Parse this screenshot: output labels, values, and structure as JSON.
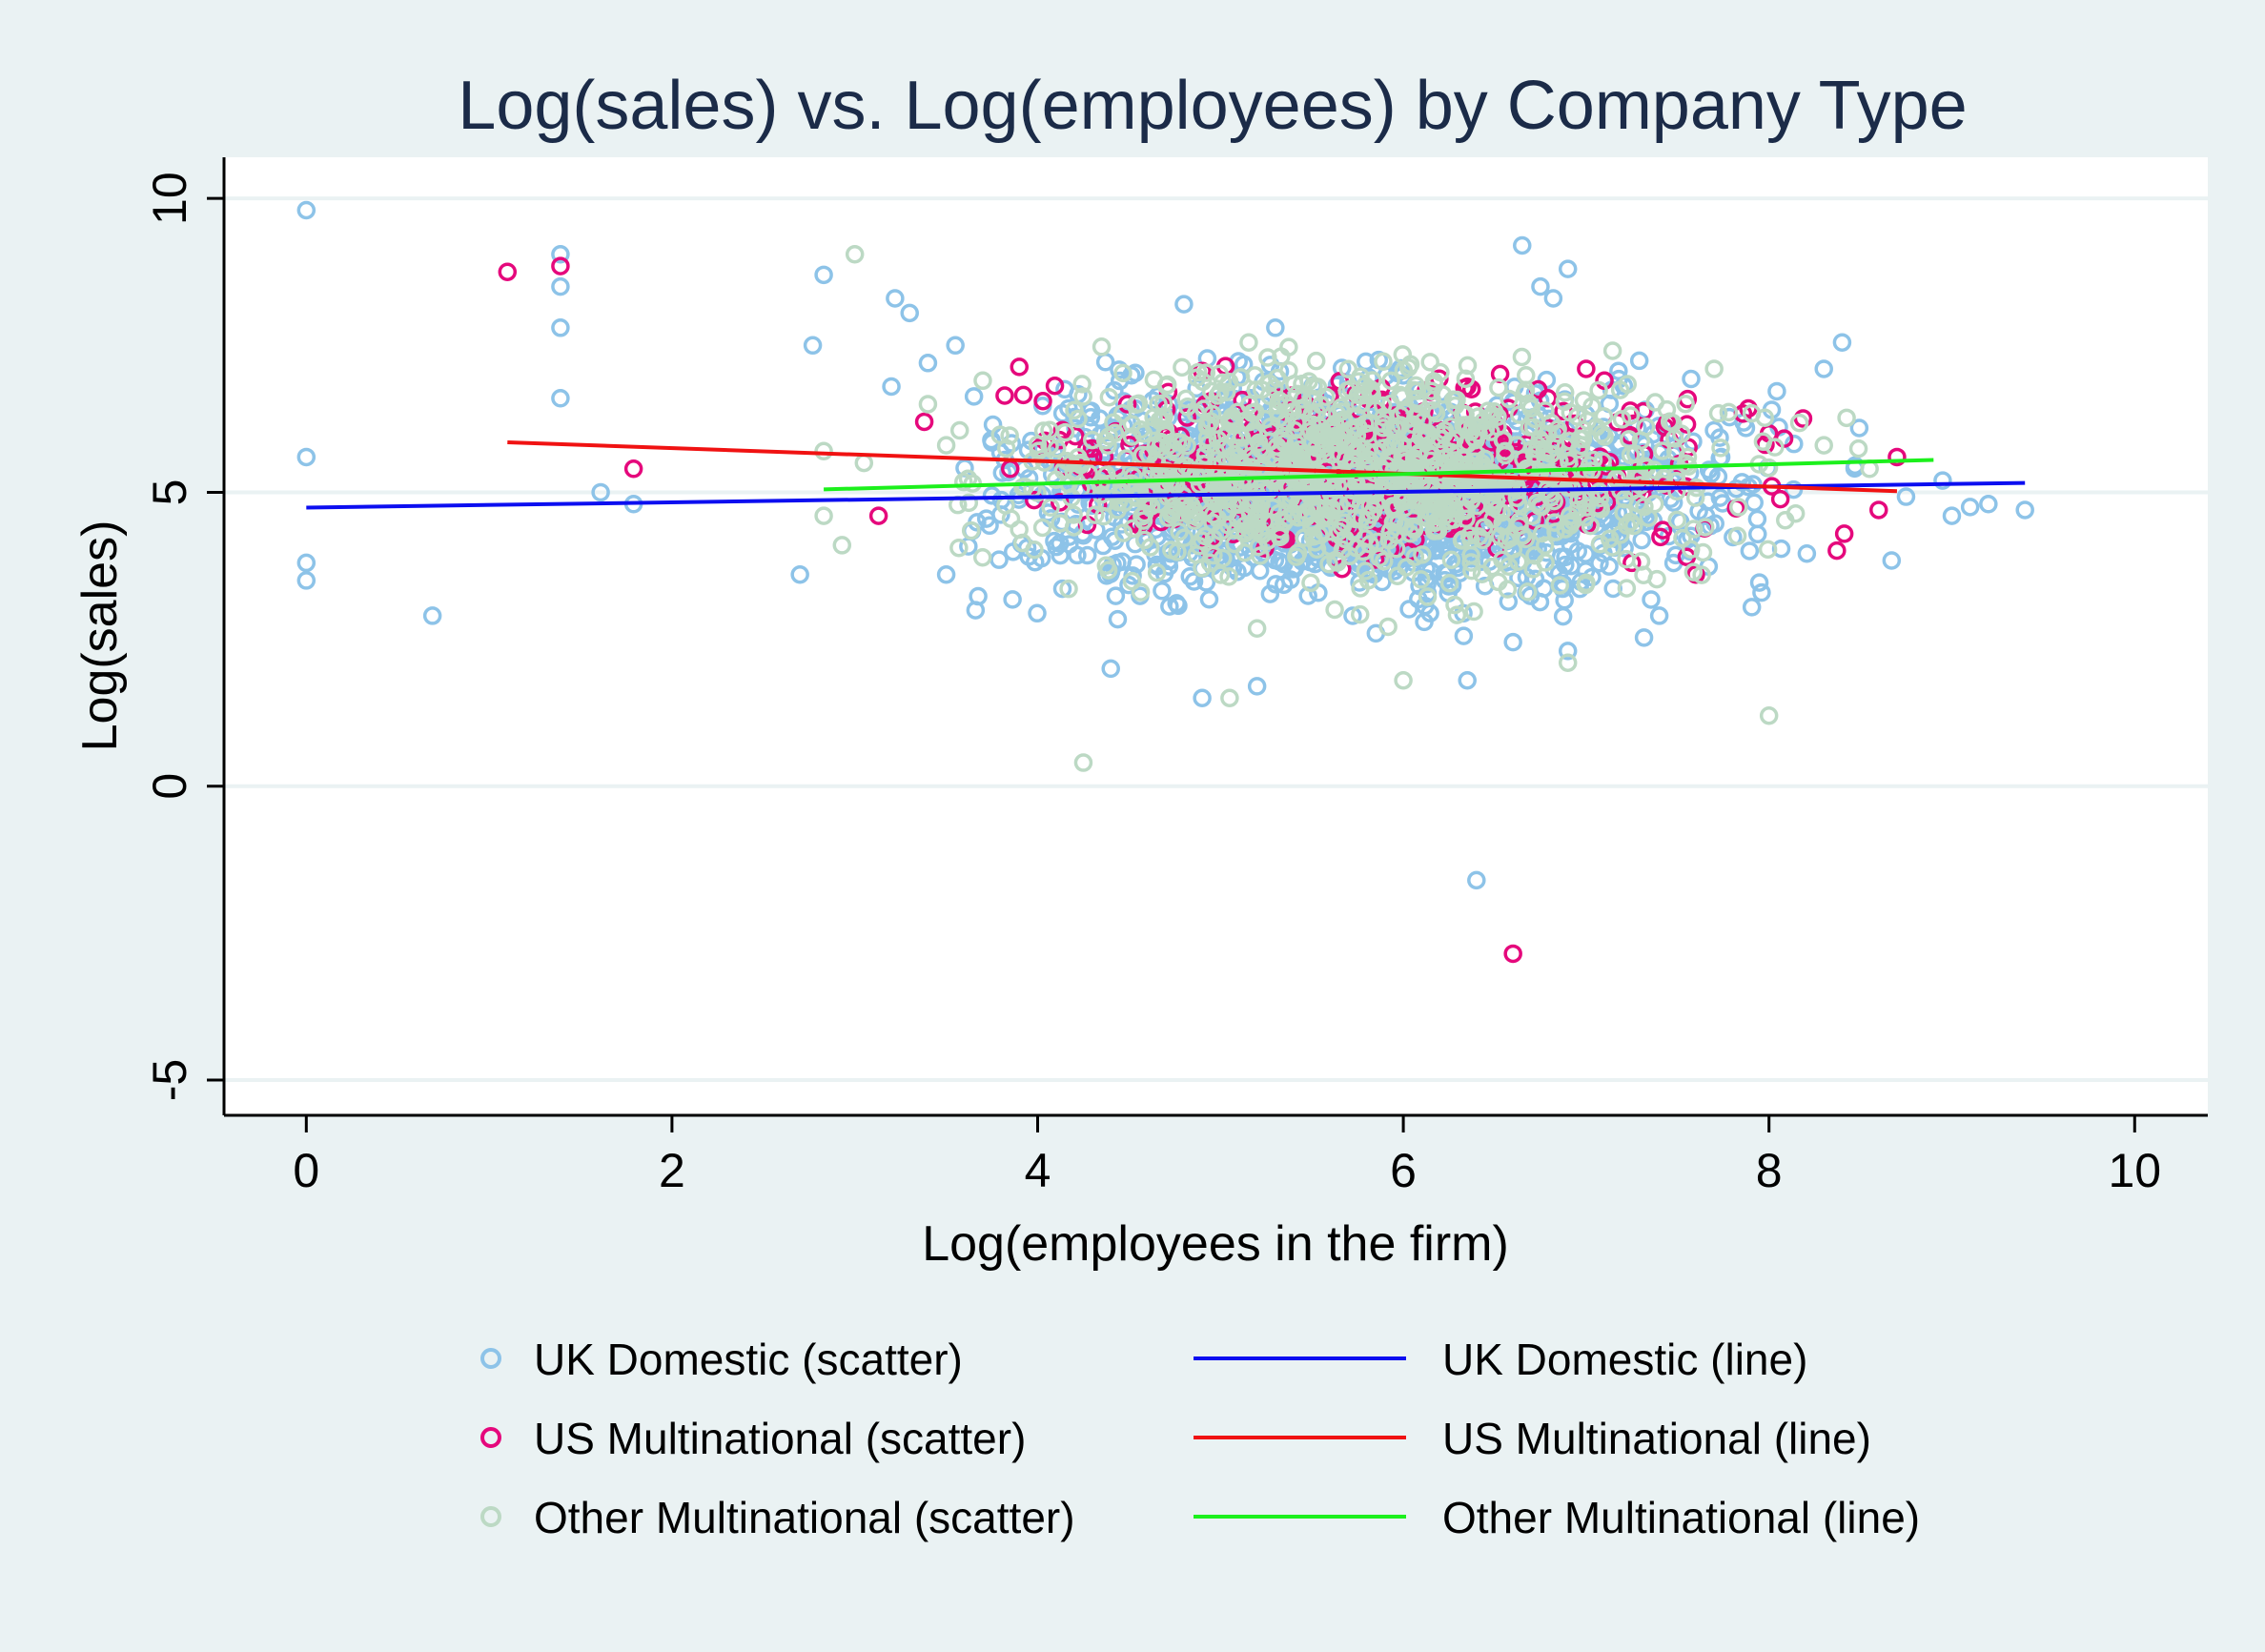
{
  "chart_data": {
    "type": "scatter",
    "title": "Log(sales) vs. Log(employees) by Company Type",
    "xlabel": "Log(employees in the firm)",
    "ylabel": "Log(sales)",
    "xlim": [
      -0.45,
      10.4
    ],
    "ylim": [
      -5.6,
      10.7
    ],
    "x_ticks": [
      0,
      2,
      4,
      6,
      8,
      10
    ],
    "y_ticks": [
      -5,
      0,
      5,
      10
    ],
    "grid": "horizontal",
    "legend_position": "bottom",
    "scatter_series": [
      {
        "name": "UK Domestic (scatter)",
        "color": "#8dc3e8",
        "marker": "hollow-circle",
        "cluster": {
          "x_center": 5.7,
          "x_spread": 0.95,
          "y_center": 5.0,
          "y_spread": 0.85,
          "x_range": [
            3.6,
            9.4
          ],
          "y_range": [
            1.7,
            7.3
          ]
        },
        "points": [
          [
            0,
            9.8
          ],
          [
            0,
            5.6
          ],
          [
            0,
            3.8
          ],
          [
            0,
            3.5
          ],
          [
            0.69,
            2.9
          ],
          [
            1.39,
            9.05
          ],
          [
            1.39,
            8.5
          ],
          [
            1.39,
            7.8
          ],
          [
            1.39,
            6.6
          ],
          [
            1.61,
            5.0
          ],
          [
            1.79,
            4.8
          ],
          [
            2.7,
            3.6
          ],
          [
            2.77,
            7.5
          ],
          [
            2.83,
            8.7
          ],
          [
            3.22,
            8.3
          ],
          [
            3.3,
            8.05
          ],
          [
            3.4,
            7.2
          ],
          [
            3.2,
            6.8
          ],
          [
            3.5,
            3.6
          ],
          [
            3.55,
            7.5
          ],
          [
            6.65,
            9.2
          ],
          [
            6.9,
            8.8
          ],
          [
            6.75,
            8.5
          ],
          [
            6.82,
            8.3
          ],
          [
            4.8,
            8.2
          ],
          [
            5.3,
            7.8
          ],
          [
            8.3,
            7.1
          ],
          [
            8.4,
            7.55
          ],
          [
            6.4,
            -1.6
          ],
          [
            4.9,
            1.5
          ],
          [
            5.2,
            1.7
          ],
          [
            6.35,
            1.8
          ],
          [
            6.9,
            2.3
          ],
          [
            7.4,
            2.9
          ],
          [
            4.4,
            2.0
          ],
          [
            9.2,
            4.8
          ],
          [
            9.4,
            4.7
          ],
          [
            8.95,
            5.2
          ],
          [
            9.0,
            4.6
          ],
          [
            9.1,
            4.75
          ],
          [
            5.85,
            2.6
          ],
          [
            6.6,
            2.45
          ]
        ]
      },
      {
        "name": "US Multinational (scatter)",
        "color": "#e5087c",
        "marker": "hollow-circle",
        "cluster": {
          "x_center": 5.9,
          "x_spread": 0.95,
          "y_center": 5.4,
          "y_spread": 0.7,
          "x_range": [
            3.8,
            8.7
          ],
          "y_range": [
            3.6,
            7.3
          ]
        },
        "points": [
          [
            1.1,
            8.75
          ],
          [
            1.39,
            8.85
          ],
          [
            1.79,
            5.4
          ],
          [
            3.13,
            4.6
          ],
          [
            3.38,
            6.2
          ],
          [
            3.85,
            5.4
          ],
          [
            6.6,
            -2.85
          ],
          [
            7.0,
            7.1
          ],
          [
            7.1,
            6.9
          ],
          [
            7.25,
            3.8
          ],
          [
            7.55,
            3.9
          ],
          [
            7.6,
            3.6
          ],
          [
            8.7,
            5.6
          ],
          [
            8.6,
            4.7
          ],
          [
            8.0,
            6.0
          ]
        ]
      },
      {
        "name": "Other Multinational (scatter)",
        "color": "#bcd9c4",
        "marker": "hollow-circle",
        "cluster": {
          "x_center": 5.8,
          "x_spread": 0.95,
          "y_center": 5.3,
          "y_spread": 0.85,
          "x_range": [
            3.5,
            8.8
          ],
          "y_range": [
            1.8,
            7.6
          ]
        },
        "points": [
          [
            2.83,
            5.7
          ],
          [
            2.83,
            4.6
          ],
          [
            2.93,
            4.1
          ],
          [
            3.0,
            9.05
          ],
          [
            3.05,
            5.5
          ],
          [
            3.4,
            6.5
          ],
          [
            3.5,
            5.8
          ],
          [
            3.7,
            6.9
          ],
          [
            4.25,
            0.4
          ],
          [
            5.05,
            1.5
          ],
          [
            6.9,
            2.1
          ],
          [
            8.0,
            1.2
          ],
          [
            7.7,
            7.1
          ],
          [
            8.55,
            5.4
          ],
          [
            8.3,
            5.8
          ],
          [
            6.0,
            1.8
          ]
        ]
      }
    ],
    "line_series": [
      {
        "name": "UK Domestic (line)",
        "color": "#0c0ef0",
        "x": [
          0,
          9.4
        ],
        "y": [
          4.74,
          5.16
        ]
      },
      {
        "name": "US Multinational (line)",
        "color": "#f01212",
        "x": [
          1.1,
          8.7
        ],
        "y": [
          5.85,
          5.02
        ]
      },
      {
        "name": "Other Multinational (line)",
        "color": "#1cf01c",
        "x": [
          2.83,
          8.9
        ],
        "y": [
          5.05,
          5.55
        ]
      }
    ],
    "legend": [
      {
        "label": "UK Domestic (scatter)",
        "kind": "marker",
        "color": "#8dc3e8"
      },
      {
        "label": "UK Domestic (line)",
        "kind": "line",
        "color": "#0c0ef0"
      },
      {
        "label": "US Multinational (scatter)",
        "kind": "marker",
        "color": "#e5087c"
      },
      {
        "label": "US Multinational (line)",
        "kind": "line",
        "color": "#f01212"
      },
      {
        "label": "Other Multinational (scatter)",
        "kind": "marker",
        "color": "#bcd9c4"
      },
      {
        "label": "Other Multinational (line)",
        "kind": "line",
        "color": "#1cf01c"
      }
    ]
  }
}
